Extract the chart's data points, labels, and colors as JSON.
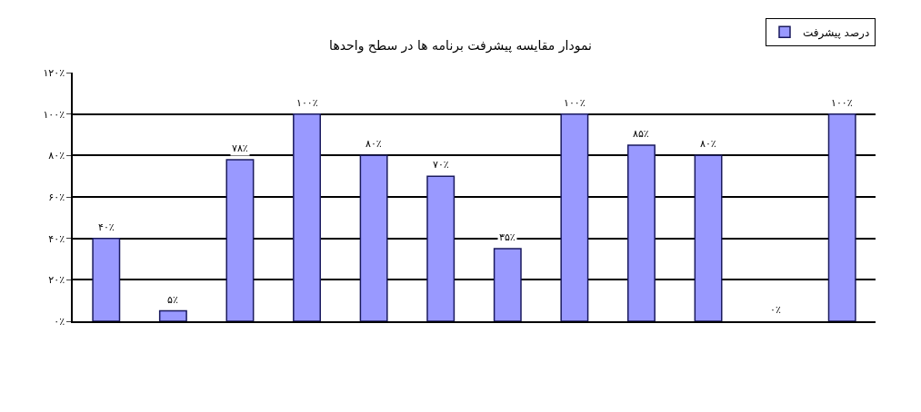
{
  "chart_data": {
    "type": "bar",
    "title": "نمودار مقایسه پیشرفت برنامه ها در سطح واحدها",
    "categories": [
      null,
      null,
      null,
      null,
      null,
      null,
      null,
      null,
      null,
      null,
      null,
      null
    ],
    "series": [
      {
        "name": "درصد پیشرفت",
        "color": "#9999ff",
        "values": [
          40,
          5,
          78,
          100,
          80,
          70,
          35,
          100,
          85,
          80,
          0,
          100
        ],
        "value_labels": [
          "۴۰٪",
          "۵٪",
          "۷۸٪",
          "۱۰۰٪",
          "۸۰٪",
          "۷۰٪",
          "۳۵٪",
          "۱۰۰٪",
          "۸۵٪",
          "۸۰٪",
          "۰٪",
          "۱۰۰٪"
        ]
      }
    ],
    "ylim": [
      0,
      120
    ],
    "yticks": [
      {
        "value": 0,
        "label": "۰٪"
      },
      {
        "value": 20,
        "label": "۲۰٪"
      },
      {
        "value": 40,
        "label": "۴۰٪"
      },
      {
        "value": 60,
        "label": "۶۰٪"
      },
      {
        "value": 80,
        "label": "۸۰٪"
      },
      {
        "value": 100,
        "label": "۱۰۰٪"
      },
      {
        "value": 120,
        "label": "۱۲۰٪"
      }
    ],
    "grid": "y",
    "legend": "top right"
  }
}
